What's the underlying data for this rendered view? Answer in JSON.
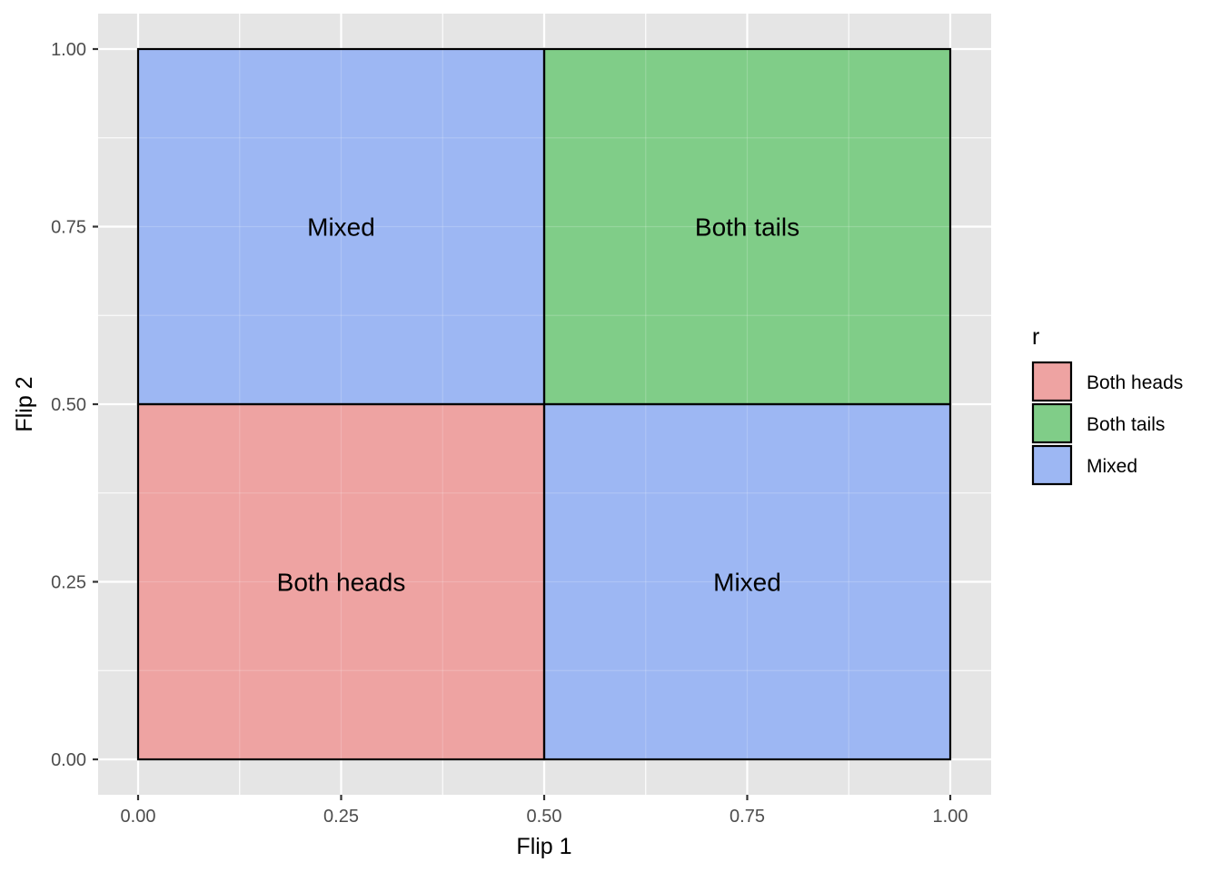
{
  "chart_data": {
    "type": "heatmap",
    "xlabel": "Flip 1",
    "ylabel": "Flip 2",
    "xlim": [
      0,
      1
    ],
    "ylim": [
      0,
      1
    ],
    "x_ticks": [
      "0.00",
      "0.25",
      "0.50",
      "0.75",
      "1.00"
    ],
    "y_ticks": [
      "0.00",
      "0.25",
      "0.50",
      "0.75",
      "1.00"
    ],
    "grid": true,
    "legend": {
      "title": "r",
      "position": "right",
      "entries": [
        {
          "label": "Both heads",
          "color": "#eea3a2"
        },
        {
          "label": "Both tails",
          "color": "#80cd88"
        },
        {
          "label": "Mixed",
          "color": "#9db7f3"
        }
      ]
    },
    "cells": [
      {
        "xmin": 0,
        "xmax": 0.5,
        "ymin": 0,
        "ymax": 0.5,
        "category": "Both heads",
        "label": "Both heads"
      },
      {
        "xmin": 0.5,
        "xmax": 1,
        "ymin": 0,
        "ymax": 0.5,
        "category": "Mixed",
        "label": "Mixed"
      },
      {
        "xmin": 0,
        "xmax": 0.5,
        "ymin": 0.5,
        "ymax": 1,
        "category": "Mixed",
        "label": "Mixed"
      },
      {
        "xmin": 0.5,
        "xmax": 1,
        "ymin": 0.5,
        "ymax": 1,
        "category": "Both tails",
        "label": "Both tails"
      }
    ]
  },
  "colors": {
    "panel_background": "#e5e5e5",
    "grid_line": "#ffffff",
    "cell_border": "#000000"
  }
}
